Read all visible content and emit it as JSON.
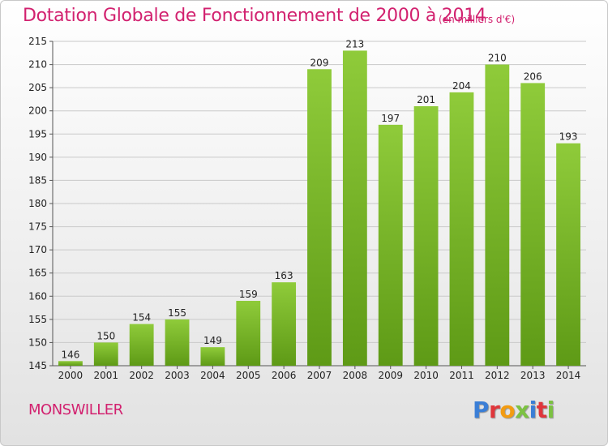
{
  "header": {
    "title": "Dotation Globale de Fonctionnement de 2000 à 2014",
    "unit": "(en milliers d'€)"
  },
  "footer": {
    "commune": "MONSWILLER",
    "logo_text": "Proxiti",
    "logo_colors": [
      "#3a7ed6",
      "#e0363b",
      "#f39c12",
      "#7cc242",
      "#3a7ed6",
      "#e0363b",
      "#7cc242"
    ]
  },
  "chart_data": {
    "type": "bar",
    "title": "Dotation Globale de Fonctionnement de 2000 à 2014",
    "subtitle": "(en milliers d'€)",
    "categories": [
      "2000",
      "2001",
      "2002",
      "2003",
      "2004",
      "2005",
      "2006",
      "2007",
      "2008",
      "2009",
      "2010",
      "2011",
      "2012",
      "2013",
      "2014"
    ],
    "values": [
      146,
      150,
      154,
      155,
      149,
      159,
      163,
      209,
      213,
      197,
      201,
      204,
      210,
      206,
      193
    ],
    "ylim": [
      145,
      215
    ],
    "yticks": [
      145,
      150,
      155,
      160,
      165,
      170,
      175,
      180,
      185,
      190,
      195,
      200,
      205,
      210,
      215
    ],
    "grid": true,
    "bar_color_top": "#8fcb3a",
    "bar_color_bottom": "#5e9a16"
  }
}
